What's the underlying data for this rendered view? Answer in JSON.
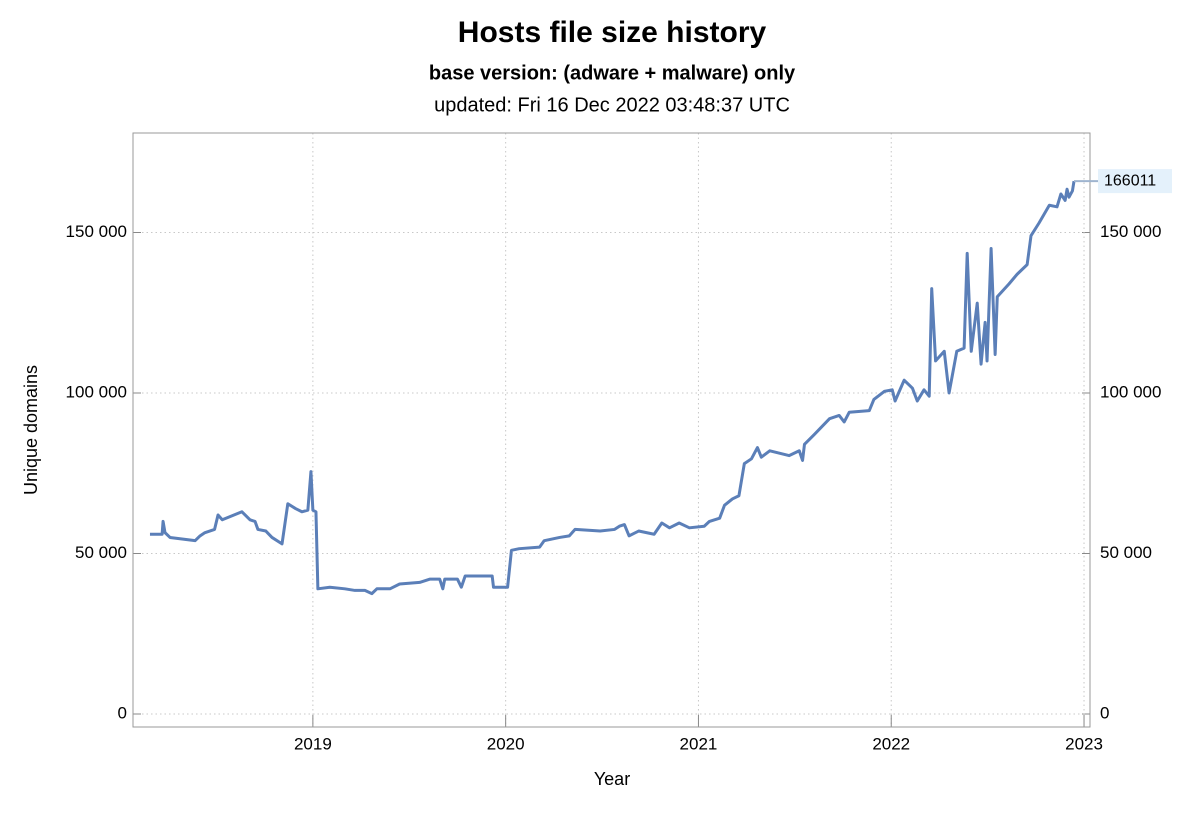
{
  "chart_data": {
    "type": "line",
    "title": "Hosts file size history",
    "subtitle": "base version: (adware + malware) only",
    "note": "updated: Fri 16 Dec 2022 03:48:37 UTC",
    "x_label": "Year",
    "y_label": "Unique domains",
    "xlim": [
      2018.067,
      2023.031
    ],
    "xticks": [
      2019,
      2020,
      2021,
      2022,
      2023
    ],
    "ylim": [
      -4050,
      181000
    ],
    "yticks": [
      0,
      {
        "value": 50000,
        "label": "50 000"
      },
      {
        "value": 100000,
        "label": "100 000"
      },
      {
        "value": 150000,
        "label": "150 000"
      }
    ],
    "y2lim": [
      -4050,
      181000
    ],
    "y2ticks": [
      0,
      {
        "value": 50000,
        "label": "50 000"
      },
      {
        "value": 100000,
        "label": "100 000"
      },
      {
        "value": 150000,
        "label": "150 000"
      }
    ],
    "grid": true,
    "series": [
      {
        "color": "#5b7fb8",
        "x": [
          2018.155,
          2018.218,
          2018.223,
          2018.233,
          2018.259,
          2018.389,
          2018.415,
          2018.44,
          2018.49,
          2018.508,
          2018.53,
          2018.57,
          2018.632,
          2018.674,
          2018.7,
          2018.715,
          2018.756,
          2018.788,
          2018.84,
          2018.87,
          2018.91,
          2018.943,
          2018.974,
          2018.99,
          2019.0,
          2019.016,
          2019.026,
          2019.088,
          2019.166,
          2019.218,
          2019.27,
          2019.306,
          2019.332,
          2019.4,
          2019.45,
          2019.554,
          2019.606,
          2019.658,
          2019.674,
          2019.684,
          2019.75,
          2019.77,
          2019.79,
          2019.865,
          2019.93,
          2019.937,
          2020.01,
          2020.03,
          2020.07,
          2020.176,
          2020.2,
          2020.28,
          2020.33,
          2020.36,
          2020.49,
          2020.565,
          2020.59,
          2020.616,
          2020.64,
          2020.69,
          2020.77,
          2020.81,
          2020.85,
          2020.9,
          2020.953,
          2021.03,
          2021.057,
          2021.11,
          2021.135,
          2021.176,
          2021.21,
          2021.238,
          2021.275,
          2021.306,
          2021.326,
          2021.37,
          2021.47,
          2021.523,
          2021.54,
          2021.55,
          2021.6,
          2021.68,
          2021.73,
          2021.756,
          2021.782,
          2021.886,
          2021.91,
          2021.964,
          2022.005,
          2022.02,
          2022.067,
          2022.11,
          2022.135,
          2022.17,
          2022.197,
          2022.21,
          2022.23,
          2022.275,
          2022.3,
          2022.34,
          2022.378,
          2022.394,
          2022.415,
          2022.446,
          2022.466,
          2022.487,
          2022.497,
          2022.518,
          2022.539,
          2022.55,
          2022.611,
          2022.653,
          2022.705,
          2022.725,
          2022.767,
          2022.82,
          2022.86,
          2022.88,
          2022.902,
          2022.912,
          2022.922,
          2022.94,
          2022.948
        ],
        "values": [
          56000,
          56000,
          60000,
          56500,
          55000,
          54000,
          55500,
          56500,
          57500,
          62000,
          60500,
          61500,
          63000,
          60500,
          60000,
          57500,
          57000,
          55000,
          53000,
          65500,
          64000,
          63000,
          63500,
          75500,
          63500,
          63000,
          39000,
          39500,
          39000,
          38500,
          38500,
          37500,
          39000,
          39000,
          40500,
          41000,
          42000,
          42000,
          39000,
          42000,
          42000,
          39500,
          43000,
          43000,
          43000,
          39500,
          39500,
          51000,
          51500,
          52000,
          54000,
          55000,
          55500,
          57500,
          57000,
          57500,
          58500,
          59000,
          55500,
          57000,
          56000,
          59500,
          58000,
          59500,
          58000,
          58500,
          60000,
          61000,
          65000,
          67000,
          68000,
          78000,
          79500,
          83000,
          80000,
          82000,
          80500,
          82000,
          79000,
          84000,
          87000,
          92000,
          93000,
          91000,
          94000,
          94500,
          98000,
          100500,
          101000,
          97500,
          104000,
          101500,
          97500,
          101000,
          99000,
          132500,
          110000,
          113000,
          100000,
          113000,
          114000,
          143500,
          113000,
          128000,
          109000,
          122000,
          110000,
          145000,
          112000,
          130000,
          134000,
          137000,
          140000,
          149000,
          153000,
          158500,
          158000,
          162000,
          160000,
          163500,
          161000,
          163000,
          166011
        ]
      }
    ]
  }
}
